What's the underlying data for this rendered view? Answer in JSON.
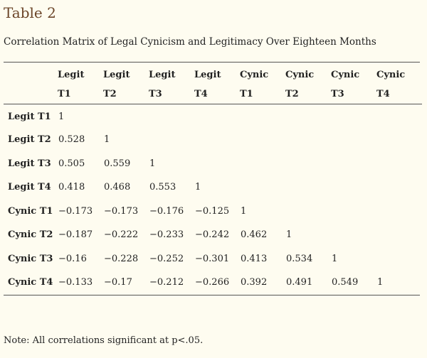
{
  "table_label": "Table 2",
  "caption": "Correlation Matrix of Legal Cynicism and Legitimacy Over Eighteen Months",
  "columns": [
    {
      "line1": "Legit",
      "line2": "T1"
    },
    {
      "line1": "Legit",
      "line2": "T2"
    },
    {
      "line1": "Legit",
      "line2": "T3"
    },
    {
      "line1": "Legit",
      "line2": "T4"
    },
    {
      "line1": "Cynic",
      "line2": "T1"
    },
    {
      "line1": "Cynic",
      "line2": "T2"
    },
    {
      "line1": "Cynic",
      "line2": "T3"
    },
    {
      "line1": "Cynic",
      "line2": "T4"
    }
  ],
  "rows": [
    {
      "label": "Legit T1",
      "cells": [
        "1",
        "",
        "",
        "",
        "",
        "",
        "",
        ""
      ]
    },
    {
      "label": "Legit T2",
      "cells": [
        "0.528",
        "1",
        "",
        "",
        "",
        "",
        "",
        ""
      ]
    },
    {
      "label": "Legit T3",
      "cells": [
        "0.505",
        "0.559",
        "1",
        "",
        "",
        "",
        "",
        ""
      ]
    },
    {
      "label": "Legit T4",
      "cells": [
        "0.418",
        "0.468",
        "0.553",
        "1",
        "",
        "",
        "",
        ""
      ]
    },
    {
      "label": "Cynic T1",
      "cells": [
        "−0.173",
        "−0.173",
        "−0.176",
        "−0.125",
        "1",
        "",
        "",
        ""
      ]
    },
    {
      "label": "Cynic T2",
      "cells": [
        "−0.187",
        "−0.222",
        "−0.233",
        "−0.242",
        "0.462",
        "1",
        "",
        ""
      ]
    },
    {
      "label": "Cynic T3",
      "cells": [
        "−0.16",
        "−0.228",
        "−0.252",
        "−0.301",
        "0.413",
        "0.534",
        "1",
        ""
      ]
    },
    {
      "label": "Cynic T4",
      "cells": [
        "−0.133",
        "−0.17",
        "−0.212",
        "−0.266",
        "0.392",
        "0.491",
        "0.549",
        "1"
      ]
    }
  ],
  "note": "Note: All correlations significant at p<.05.",
  "colors": {
    "background": "#fefcf0",
    "label": "#6b4528",
    "rule": "#555555"
  }
}
